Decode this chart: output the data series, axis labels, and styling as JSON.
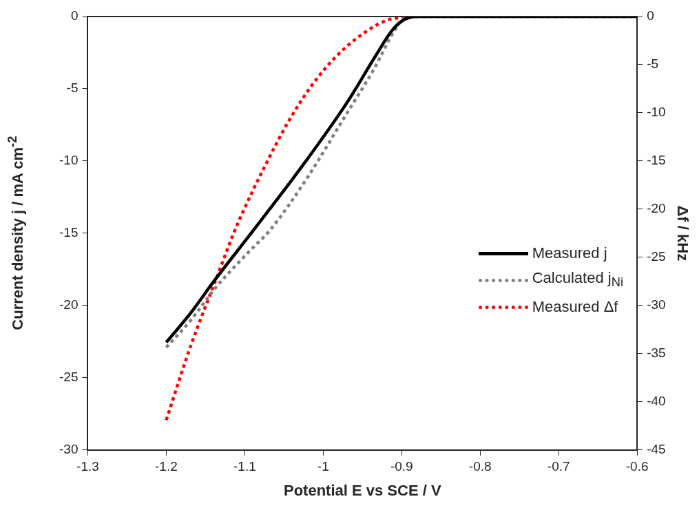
{
  "chart_data": {
    "type": "line",
    "xlabel": "Potential E vs SCE / V",
    "ylabel": "Current density j / mA cm$^{-2}$",
    "y2label": "Δf / kHz",
    "xlim": [
      -1.3,
      -0.6
    ],
    "xticks": [
      -1.3,
      -1.2,
      -1.1,
      -1,
      -0.9,
      -0.8,
      -0.7,
      -0.6
    ],
    "ylim": [
      -30,
      0
    ],
    "yticks": [
      -30,
      -25,
      -20,
      -15,
      -10,
      -5,
      0
    ],
    "y2lim": [
      -45,
      0
    ],
    "y2ticks": [
      -45,
      -40,
      -35,
      -30,
      -25,
      -20,
      -15,
      -10,
      -5,
      0
    ],
    "grid": false,
    "legend": "right",
    "marker": "none",
    "series": [
      {
        "name": "Measured j",
        "color": "#000000",
        "line_style": "solid",
        "x": [
          -1.2,
          -1.17,
          -1.139,
          -1.089,
          -1.022,
          -0.969,
          -0.933,
          -0.912,
          -0.898,
          -0.88,
          -0.6
        ],
        "values": [
          -22.55,
          -20.6,
          -18.3,
          -14.8,
          -10.0,
          -5.9,
          -2.7,
          -0.95,
          -0.25,
          0,
          0
        ]
      },
      {
        "name": "Calculated j$_{Ni}$",
        "color": "#808080",
        "line_style": "dotted",
        "x": [
          -1.2,
          -1.17,
          -1.136,
          -1.095,
          -1.068,
          -1.022,
          -0.971,
          -0.936,
          -0.909,
          -0.897,
          -0.88,
          -0.6
        ],
        "values": [
          -22.9,
          -21.1,
          -18.7,
          -16.3,
          -14.8,
          -11.3,
          -6.8,
          -3.7,
          -0.95,
          -0.15,
          0,
          0
        ]
      },
      {
        "name": "Measured Δf",
        "color": "#ff0000",
        "line_style": "dotted",
        "axis": "y2",
        "x": [
          -1.2,
          -1.168,
          -1.139,
          -1.11,
          -1.071,
          -1.045,
          -1.015,
          -0.983,
          -0.947,
          -0.918,
          -0.898,
          -0.88,
          -0.6
        ],
        "values": [
          -41.9,
          -34.0,
          -27.8,
          -21.7,
          -15.0,
          -11.0,
          -7.2,
          -4.1,
          -1.65,
          -0.36,
          -0.1,
          0,
          0
        ]
      }
    ]
  }
}
